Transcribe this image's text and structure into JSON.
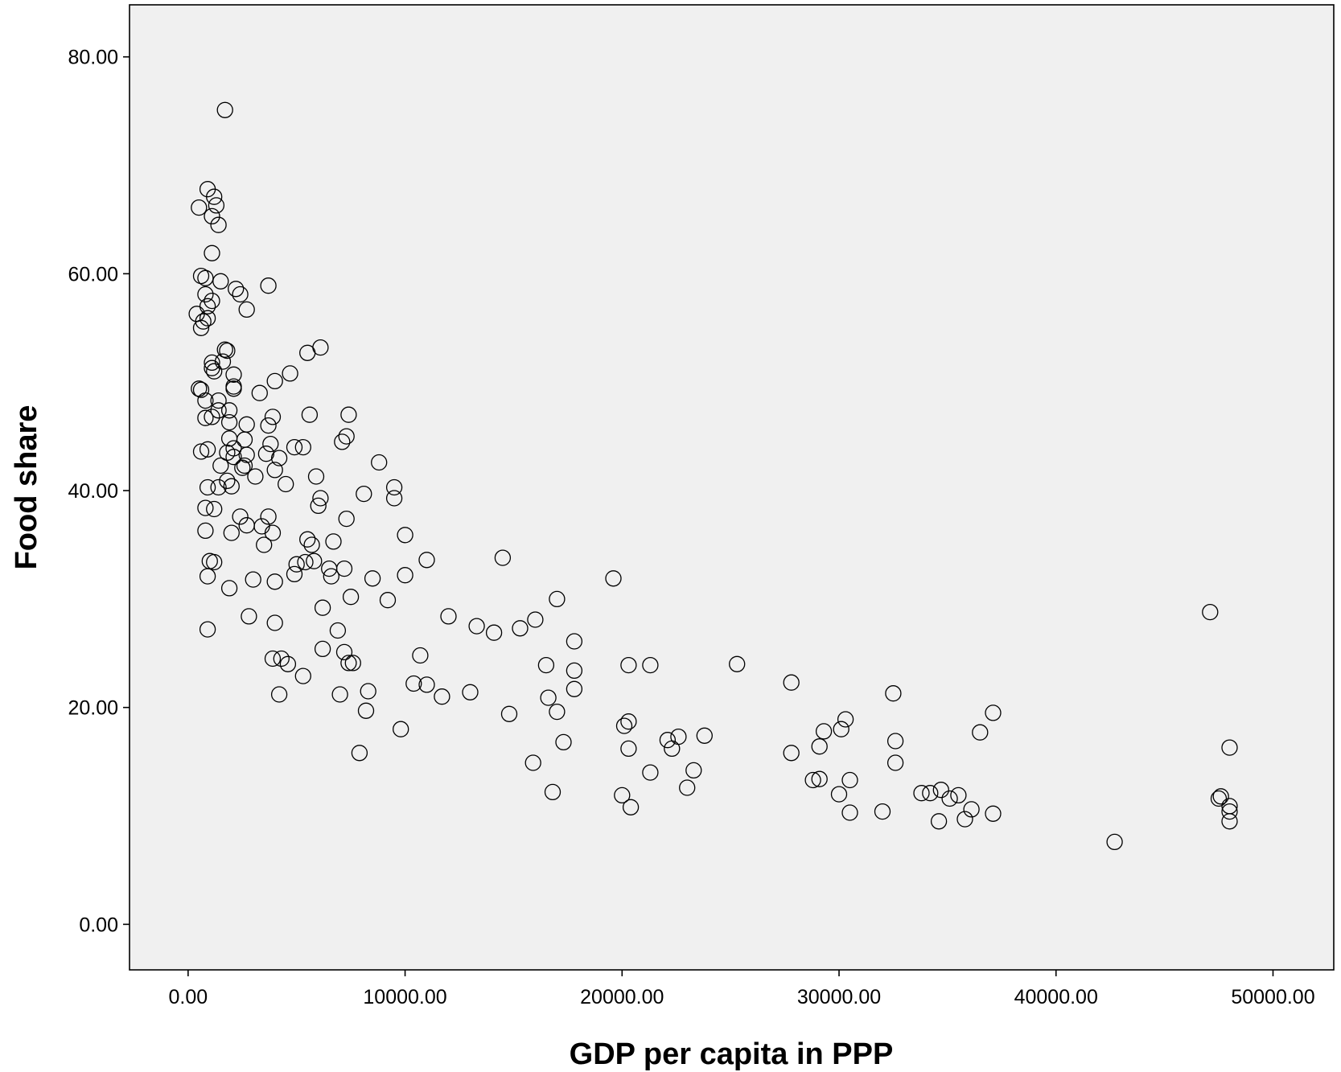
{
  "chart_data": {
    "type": "scatter",
    "title": "",
    "xlabel": "GDP per capita in PPP",
    "ylabel": "Food share",
    "xlim": [
      -2700,
      52800
    ],
    "ylim": [
      -4.2,
      84.8
    ],
    "x_ticks": [
      0,
      10000,
      20000,
      30000,
      40000,
      50000
    ],
    "x_tick_labels": [
      "0.00",
      "10000.00",
      "20000.00",
      "30000.00",
      "40000.00",
      "50000.00"
    ],
    "y_ticks": [
      0,
      20,
      40,
      60,
      80
    ],
    "y_tick_labels": [
      "0.00",
      "20.00",
      "40.00",
      "60.00",
      "80.00"
    ],
    "grid": false,
    "legend": "none",
    "colors": {
      "plot_background": "#f0f0f0",
      "marker_stroke": "#000000",
      "axis": "#000000"
    },
    "marker": "open-circle",
    "points": [
      [
        1700,
        75.1
      ],
      [
        900,
        67.8
      ],
      [
        1200,
        67.1
      ],
      [
        1300,
        66.3
      ],
      [
        500,
        66.1
      ],
      [
        1100,
        65.3
      ],
      [
        1400,
        64.5
      ],
      [
        1100,
        61.9
      ],
      [
        600,
        59.8
      ],
      [
        800,
        59.6
      ],
      [
        1500,
        59.3
      ],
      [
        3700,
        58.9
      ],
      [
        2200,
        58.6
      ],
      [
        2400,
        58.1
      ],
      [
        800,
        58.1
      ],
      [
        1100,
        57.5
      ],
      [
        900,
        57.0
      ],
      [
        2700,
        56.7
      ],
      [
        400,
        56.3
      ],
      [
        900,
        55.9
      ],
      [
        700,
        55.6
      ],
      [
        600,
        55.0
      ],
      [
        6100,
        53.2
      ],
      [
        1700,
        53.0
      ],
      [
        1800,
        52.9
      ],
      [
        5500,
        52.7
      ],
      [
        1600,
        51.9
      ],
      [
        1100,
        51.8
      ],
      [
        1100,
        51.3
      ],
      [
        1200,
        51.0
      ],
      [
        2100,
        50.7
      ],
      [
        4700,
        50.8
      ],
      [
        4000,
        50.1
      ],
      [
        2100,
        49.6
      ],
      [
        2100,
        49.4
      ],
      [
        500,
        49.4
      ],
      [
        600,
        49.3
      ],
      [
        3300,
        49.0
      ],
      [
        800,
        48.3
      ],
      [
        1400,
        48.3
      ],
      [
        1400,
        47.4
      ],
      [
        1900,
        47.4
      ],
      [
        5600,
        47.0
      ],
      [
        7400,
        47.0
      ],
      [
        800,
        46.7
      ],
      [
        1100,
        46.8
      ],
      [
        3900,
        46.8
      ],
      [
        1900,
        46.3
      ],
      [
        2700,
        46.1
      ],
      [
        3700,
        46.0
      ],
      [
        7300,
        45.0
      ],
      [
        1900,
        44.8
      ],
      [
        2600,
        44.7
      ],
      [
        3800,
        44.3
      ],
      [
        7100,
        44.5
      ],
      [
        4900,
        44.0
      ],
      [
        5300,
        44.0
      ],
      [
        2100,
        43.9
      ],
      [
        900,
        43.8
      ],
      [
        600,
        43.6
      ],
      [
        1800,
        43.5
      ],
      [
        2700,
        43.3
      ],
      [
        3600,
        43.4
      ],
      [
        4200,
        43.0
      ],
      [
        2100,
        43.1
      ],
      [
        8800,
        42.6
      ],
      [
        1500,
        42.3
      ],
      [
        2600,
        42.3
      ],
      [
        2500,
        42.1
      ],
      [
        4000,
        41.9
      ],
      [
        3100,
        41.3
      ],
      [
        5900,
        41.3
      ],
      [
        1800,
        40.9
      ],
      [
        9500,
        40.3
      ],
      [
        4500,
        40.6
      ],
      [
        2000,
        40.4
      ],
      [
        900,
        40.3
      ],
      [
        1400,
        40.3
      ],
      [
        8100,
        39.7
      ],
      [
        6100,
        39.3
      ],
      [
        9500,
        39.3
      ],
      [
        6000,
        38.6
      ],
      [
        800,
        38.4
      ],
      [
        1200,
        38.3
      ],
      [
        2400,
        37.6
      ],
      [
        3700,
        37.6
      ],
      [
        7300,
        37.4
      ],
      [
        2700,
        36.8
      ],
      [
        3400,
        36.7
      ],
      [
        800,
        36.3
      ],
      [
        2000,
        36.1
      ],
      [
        3900,
        36.1
      ],
      [
        10000,
        35.9
      ],
      [
        5500,
        35.5
      ],
      [
        6700,
        35.3
      ],
      [
        3500,
        35.0
      ],
      [
        5700,
        35.0
      ],
      [
        14500,
        33.8
      ],
      [
        1000,
        33.5
      ],
      [
        1200,
        33.4
      ],
      [
        11000,
        33.6
      ],
      [
        5400,
        33.4
      ],
      [
        5000,
        33.2
      ],
      [
        5800,
        33.5
      ],
      [
        6500,
        32.8
      ],
      [
        7200,
        32.8
      ],
      [
        4900,
        32.3
      ],
      [
        6600,
        32.1
      ],
      [
        10000,
        32.2
      ],
      [
        900,
        32.1
      ],
      [
        8500,
        31.9
      ],
      [
        19600,
        31.9
      ],
      [
        3000,
        31.8
      ],
      [
        4000,
        31.6
      ],
      [
        1900,
        31.0
      ],
      [
        7500,
        30.2
      ],
      [
        17000,
        30.0
      ],
      [
        9200,
        29.9
      ],
      [
        6200,
        29.2
      ],
      [
        47100,
        28.8
      ],
      [
        2800,
        28.4
      ],
      [
        12000,
        28.4
      ],
      [
        16000,
        28.1
      ],
      [
        4000,
        27.8
      ],
      [
        13300,
        27.5
      ],
      [
        15300,
        27.3
      ],
      [
        900,
        27.2
      ],
      [
        6900,
        27.1
      ],
      [
        14100,
        26.9
      ],
      [
        17800,
        26.1
      ],
      [
        6200,
        25.4
      ],
      [
        7200,
        25.1
      ],
      [
        10700,
        24.8
      ],
      [
        3900,
        24.5
      ],
      [
        4300,
        24.5
      ],
      [
        4600,
        24.0
      ],
      [
        7400,
        24.1
      ],
      [
        7600,
        24.1
      ],
      [
        16500,
        23.9
      ],
      [
        20300,
        23.9
      ],
      [
        21300,
        23.9
      ],
      [
        25300,
        24.0
      ],
      [
        17800,
        23.4
      ],
      [
        5300,
        22.9
      ],
      [
        27800,
        22.3
      ],
      [
        10400,
        22.2
      ],
      [
        11000,
        22.1
      ],
      [
        17800,
        21.7
      ],
      [
        8300,
        21.5
      ],
      [
        13000,
        21.4
      ],
      [
        32500,
        21.3
      ],
      [
        4200,
        21.2
      ],
      [
        7000,
        21.2
      ],
      [
        11700,
        21.0
      ],
      [
        16600,
        20.9
      ],
      [
        17000,
        19.6
      ],
      [
        8200,
        19.7
      ],
      [
        37100,
        19.5
      ],
      [
        14800,
        19.4
      ],
      [
        30300,
        18.9
      ],
      [
        20300,
        18.7
      ],
      [
        20100,
        18.3
      ],
      [
        30100,
        18.0
      ],
      [
        9800,
        18.0
      ],
      [
        29300,
        17.8
      ],
      [
        36500,
        17.7
      ],
      [
        23800,
        17.4
      ],
      [
        22600,
        17.3
      ],
      [
        22100,
        17.0
      ],
      [
        32600,
        16.9
      ],
      [
        17300,
        16.8
      ],
      [
        29100,
        16.4
      ],
      [
        48000,
        16.3
      ],
      [
        20300,
        16.2
      ],
      [
        22300,
        16.2
      ],
      [
        7900,
        15.8
      ],
      [
        27800,
        15.8
      ],
      [
        32600,
        14.9
      ],
      [
        15900,
        14.9
      ],
      [
        23300,
        14.2
      ],
      [
        21300,
        14.0
      ],
      [
        29100,
        13.4
      ],
      [
        28800,
        13.3
      ],
      [
        30500,
        13.3
      ],
      [
        23000,
        12.6
      ],
      [
        16800,
        12.2
      ],
      [
        34700,
        12.4
      ],
      [
        34200,
        12.1
      ],
      [
        33800,
        12.1
      ],
      [
        30000,
        12.0
      ],
      [
        20000,
        11.9
      ],
      [
        35500,
        11.9
      ],
      [
        47600,
        11.8
      ],
      [
        47500,
        11.6
      ],
      [
        35100,
        11.6
      ],
      [
        48000,
        10.9
      ],
      [
        20400,
        10.8
      ],
      [
        36100,
        10.6
      ],
      [
        32000,
        10.4
      ],
      [
        48000,
        10.4
      ],
      [
        30500,
        10.3
      ],
      [
        37100,
        10.2
      ],
      [
        34600,
        9.5
      ],
      [
        48000,
        9.5
      ],
      [
        35800,
        9.7
      ],
      [
        42700,
        7.6
      ]
    ]
  }
}
